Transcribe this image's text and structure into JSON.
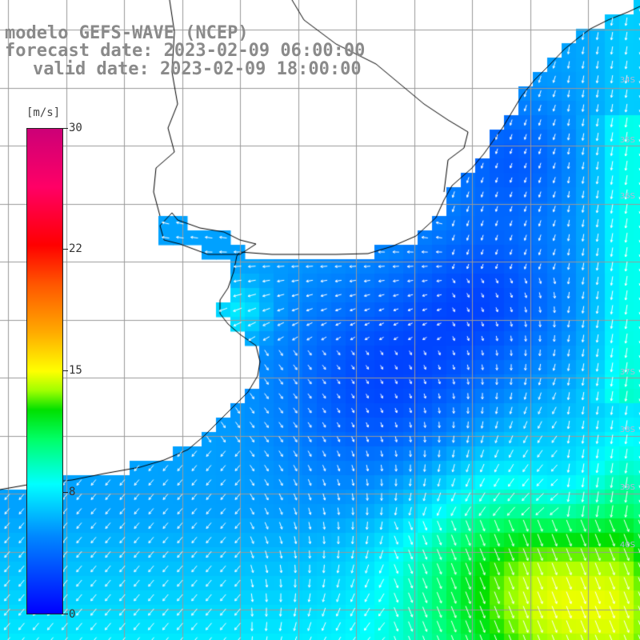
{
  "title": {
    "line1": "modelo GEFS-WAVE (NCEP)",
    "line2": "forecast date: 2023-02-09 06:00:00",
    "line3": "valid date: 2023-02-09 18:00:00"
  },
  "colorbar": {
    "unit": "[m/s]",
    "min": 0,
    "max": 30,
    "ticks": [
      "30",
      "22",
      "15",
      "8",
      "0"
    ]
  },
  "colors": {
    "ocean_low": "#0000ff",
    "ocean_mid": "#0088ff",
    "ocean_cyan": "#00ffff",
    "ocean_green": "#00e000",
    "land": "#ffffff",
    "grid": "#999999",
    "coast": "#000000",
    "arrow": "#ffffff",
    "title_text": "#8a8a8a"
  },
  "lat_labels": [
    "34S",
    "35S",
    "36S",
    "37S",
    "38S",
    "39S",
    "40S"
  ],
  "map_data": {
    "region": "South Atlantic off Uruguay / Buenos Aires coast",
    "variable": "wind speed and direction",
    "calm_centers": [
      "center of the Rio de la Plata plume",
      "offshore east"
    ],
    "strong_wind_area": "south-east corner",
    "strong_wind_range_ms": [
      10,
      14
    ]
  }
}
